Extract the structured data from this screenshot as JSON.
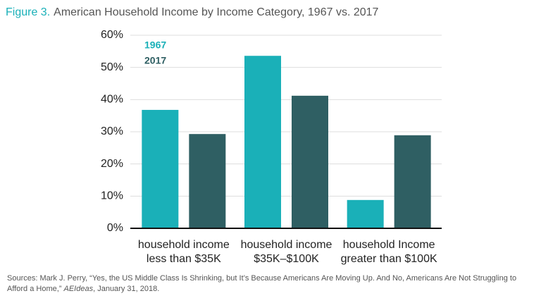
{
  "chart_data": {
    "type": "bar",
    "figure_label": "Figure 3.",
    "title": "American Household Income by Income Category, 1967 vs. 2017",
    "categories": [
      [
        "household income",
        "less than $35K"
      ],
      [
        "household income",
        "$35K–$100K"
      ],
      [
        "household Income",
        "greater than $100K"
      ]
    ],
    "series": [
      {
        "name": "1967",
        "color": "#1ab0b8",
        "values": [
          36.8,
          53.6,
          8.8
        ]
      },
      {
        "name": "2017",
        "color": "#2f5f63",
        "values": [
          29.3,
          41.2,
          28.9
        ]
      }
    ],
    "ylim": [
      0,
      60
    ],
    "yticks": [
      {
        "value": 0,
        "label": "0%"
      },
      {
        "value": 10,
        "label": "10%"
      },
      {
        "value": 20,
        "label": "20%"
      },
      {
        "value": 30,
        "label": "30%"
      },
      {
        "value": 40,
        "label": "40%"
      },
      {
        "value": 50,
        "label": "50%"
      },
      {
        "value": 60,
        "label": "60%"
      }
    ],
    "grid": true,
    "legend": "upper-left",
    "source": [
      "Sources: Mark J. Perry, “Yes, the US Middle Class Is Shrinking, but It’s Because Americans Are Moving Up. And No, Americans Are Not Struggling to Afford a Home,” ",
      "AEIdeas",
      ", January 31, 2018."
    ]
  }
}
